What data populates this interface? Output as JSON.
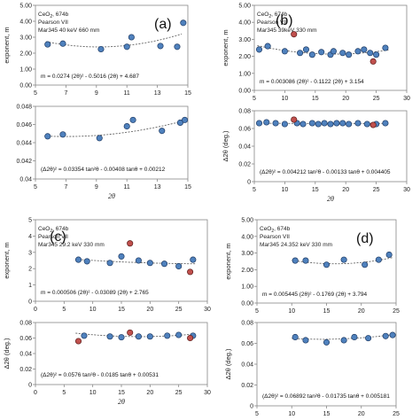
{
  "chart_data": [
    {
      "type": "scatter",
      "title": "",
      "panel_label": "(a)",
      "annotation": [
        "CeO",
        "2",
        ", 674b",
        "Pearson VII",
        "Mar345 40 keV 660 mm"
      ],
      "equation": "m = 0.0274 (2θ)² - 0.5016 (2θ) + 4.687",
      "ylabel": "exponent, m",
      "xlabel": "",
      "xlim": [
        5,
        15
      ],
      "xticks": [
        5,
        7,
        9,
        11,
        13,
        15
      ],
      "ylim": [
        0,
        5
      ],
      "yticks": [
        0,
        1,
        2,
        3,
        4,
        5
      ],
      "yticklabels": [
        "0.00",
        "1.00",
        "2.00",
        "3.00",
        "4.00",
        "5.00"
      ],
      "fit": {
        "kind": "poly2",
        "coef": [
          0.0274,
          -0.5016,
          4.687
        ],
        "range": [
          5.7,
          14.6
        ]
      },
      "points": [
        {
          "x": 5.8,
          "y": 2.55
        },
        {
          "x": 6.8,
          "y": 2.6
        },
        {
          "x": 9.3,
          "y": 2.25
        },
        {
          "x": 11.0,
          "y": 2.4
        },
        {
          "x": 11.3,
          "y": 3.0
        },
        {
          "x": 13.2,
          "y": 2.45
        },
        {
          "x": 14.3,
          "y": 2.4
        },
        {
          "x": 14.7,
          "y": 3.9
        }
      ]
    },
    {
      "type": "scatter",
      "title": "",
      "equation": "(Δ2θ)² = 0.03354 tan²θ - 0.00408 tanθ + 0.00212",
      "ylabel": "",
      "xlabel": "2θ",
      "xlim": [
        5,
        15
      ],
      "xticks": [
        5,
        7,
        9,
        11,
        13,
        15
      ],
      "ylim": [
        0.04,
        0.048
      ],
      "yticks": [
        0.04,
        0.042,
        0.044,
        0.046,
        0.048
      ],
      "yticklabels": [
        "0.04",
        "0.042",
        "0.044",
        "0.046",
        "0.048"
      ],
      "fit": {
        "kind": "tanpoly",
        "coef": [
          0.03354,
          -0.00408,
          0.00212
        ],
        "range": [
          5.6,
          14.8
        ]
      },
      "points": [
        {
          "x": 5.8,
          "y": 0.0447
        },
        {
          "x": 6.8,
          "y": 0.0449
        },
        {
          "x": 9.2,
          "y": 0.0445
        },
        {
          "x": 11.0,
          "y": 0.0458
        },
        {
          "x": 11.4,
          "y": 0.0465
        },
        {
          "x": 13.3,
          "y": 0.0453
        },
        {
          "x": 14.5,
          "y": 0.0462
        },
        {
          "x": 14.8,
          "y": 0.0465
        }
      ]
    },
    {
      "type": "scatter",
      "title": "",
      "panel_label": "(b)",
      "annotation": [
        "CeO",
        "2",
        ", 674b",
        "Pearson VII",
        "Mar345 39keV  330 mm"
      ],
      "equation": "m = 0.003086 (2θ)² - 0.1122 (2θ) + 3.154",
      "ylabel": "exponent, m",
      "xlabel": "",
      "xlim": [
        5,
        30
      ],
      "xticks": [
        5,
        10,
        15,
        20,
        25,
        30
      ],
      "ylim": [
        0,
        5
      ],
      "yticks": [
        0,
        1,
        2,
        3,
        4,
        5
      ],
      "yticklabels": [
        "0.00",
        "1.00",
        "2.00",
        "3.00",
        "4.00",
        "5.00"
      ],
      "fit": {
        "kind": "poly2",
        "coef": [
          0.003086,
          -0.1122,
          3.154
        ],
        "range": [
          5.5,
          27
        ]
      },
      "points": [
        {
          "x": 5.8,
          "y": 2.4
        },
        {
          "x": 7.2,
          "y": 2.6
        },
        {
          "x": 10.0,
          "y": 2.3
        },
        {
          "x": 12.5,
          "y": 2.2
        },
        {
          "x": 13.5,
          "y": 2.4
        },
        {
          "x": 14.5,
          "y": 2.1
        },
        {
          "x": 16.0,
          "y": 2.25
        },
        {
          "x": 17.5,
          "y": 2.1
        },
        {
          "x": 18.0,
          "y": 2.3
        },
        {
          "x": 19.5,
          "y": 2.2
        },
        {
          "x": 20.5,
          "y": 2.1
        },
        {
          "x": 22.0,
          "y": 2.3
        },
        {
          "x": 23.0,
          "y": 2.4
        },
        {
          "x": 24.0,
          "y": 2.2
        },
        {
          "x": 25.0,
          "y": 2.1
        },
        {
          "x": 26.5,
          "y": 2.5
        }
      ],
      "outliers": [
        {
          "x": 11.5,
          "y": 3.3
        },
        {
          "x": 24.5,
          "y": 1.7
        }
      ]
    },
    {
      "type": "scatter",
      "title": "",
      "equation": "(Δ2θ)² = 0.004212 tan²θ - 0.00133 tanθ + 0.004405",
      "ylabel": "Δ2θ (deg.)",
      "xlabel": "2θ",
      "xlim": [
        5,
        30
      ],
      "xticks": [
        5,
        10,
        15,
        20,
        25,
        30
      ],
      "ylim": [
        0,
        0.08
      ],
      "yticks": [
        0,
        0.02,
        0.04,
        0.06,
        0.08
      ],
      "yticklabels": [
        "0",
        "0.02",
        "0.04",
        "0.06",
        "0.08"
      ],
      "fit": {
        "kind": "tanpoly",
        "coef": [
          0.004212,
          -0.00133,
          0.004405
        ],
        "range": [
          5.5,
          27
        ]
      },
      "points": [
        {
          "x": 5.8,
          "y": 0.066
        },
        {
          "x": 7.0,
          "y": 0.067
        },
        {
          "x": 8.5,
          "y": 0.066
        },
        {
          "x": 10.0,
          "y": 0.065
        },
        {
          "x": 12.0,
          "y": 0.066
        },
        {
          "x": 13.0,
          "y": 0.065
        },
        {
          "x": 14.5,
          "y": 0.066
        },
        {
          "x": 15.5,
          "y": 0.065
        },
        {
          "x": 16.5,
          "y": 0.066
        },
        {
          "x": 17.5,
          "y": 0.065
        },
        {
          "x": 18.5,
          "y": 0.066
        },
        {
          "x": 19.5,
          "y": 0.066
        },
        {
          "x": 20.5,
          "y": 0.065
        },
        {
          "x": 22.0,
          "y": 0.066
        },
        {
          "x": 23.5,
          "y": 0.065
        },
        {
          "x": 25.0,
          "y": 0.065
        },
        {
          "x": 26.5,
          "y": 0.066
        }
      ],
      "outliers": [
        {
          "x": 11.5,
          "y": 0.07
        },
        {
          "x": 24.5,
          "y": 0.064
        }
      ]
    },
    {
      "type": "scatter",
      "title": "",
      "panel_label": "(c)",
      "annotation": [
        "CeO",
        "2",
        ", 674b",
        "Pearson VII",
        "Mar345 29.2 keV 330 mm"
      ],
      "equation": "m = 0.000506 (2θ)² - 0.03089 (2θ) + 2.765",
      "ylabel": "exponent, m",
      "xlabel": "",
      "xlim": [
        0,
        30
      ],
      "xticks": [
        0,
        5,
        10,
        15,
        20,
        25,
        30
      ],
      "ylim": [
        0,
        5
      ],
      "yticks": [
        0,
        1,
        2,
        3,
        4,
        5
      ],
      "yticklabels": [
        "0",
        "1",
        "2",
        "3",
        "4",
        "5"
      ],
      "fit": {
        "kind": "poly2",
        "coef": [
          0.000506,
          -0.03089,
          2.765
        ],
        "range": [
          7,
          28
        ]
      },
      "points": [
        {
          "x": 7.5,
          "y": 2.55
        },
        {
          "x": 9.0,
          "y": 2.45
        },
        {
          "x": 13.0,
          "y": 2.35
        },
        {
          "x": 15.0,
          "y": 2.75
        },
        {
          "x": 18.0,
          "y": 2.5
        },
        {
          "x": 20.0,
          "y": 2.35
        },
        {
          "x": 22.5,
          "y": 2.3
        },
        {
          "x": 25.0,
          "y": 2.15
        },
        {
          "x": 27.5,
          "y": 2.55
        }
      ],
      "outliers": [
        {
          "x": 16.5,
          "y": 3.55
        },
        {
          "x": 27.0,
          "y": 1.8
        }
      ]
    },
    {
      "type": "scatter",
      "title": "",
      "equation": "(Δ2θ)² = 0.0576 tan²θ - 0.0185 tanθ + 0.00531",
      "ylabel": "Δ2θ (deg.)",
      "xlabel": "2θ",
      "xlim": [
        0,
        30
      ],
      "xticks": [
        0,
        5,
        10,
        15,
        20,
        25,
        30
      ],
      "ylim": [
        0,
        0.08
      ],
      "yticks": [
        0,
        0.02,
        0.04,
        0.06,
        0.08
      ],
      "yticklabels": [
        "0",
        "0.02",
        "0.04",
        "0.06",
        "0.08"
      ],
      "fit": {
        "kind": "tanpoly",
        "coef": [
          0.0576,
          -0.0185,
          0.00531
        ],
        "range": [
          7,
          28
        ]
      },
      "points": [
        {
          "x": 8.5,
          "y": 0.063
        },
        {
          "x": 13.0,
          "y": 0.062
        },
        {
          "x": 15.0,
          "y": 0.061
        },
        {
          "x": 18.0,
          "y": 0.062
        },
        {
          "x": 20.0,
          "y": 0.062
        },
        {
          "x": 23.0,
          "y": 0.063
        },
        {
          "x": 25.0,
          "y": 0.064
        },
        {
          "x": 27.5,
          "y": 0.063
        }
      ],
      "outliers": [
        {
          "x": 7.5,
          "y": 0.056
        },
        {
          "x": 16.5,
          "y": 0.067
        },
        {
          "x": 27.0,
          "y": 0.06
        }
      ]
    },
    {
      "type": "scatter",
      "title": "",
      "panel_label": "(d)",
      "annotation": [
        "CeO",
        "2",
        ", 674b",
        "Pearson VII",
        "Mar345 24.352 keV 330 mm"
      ],
      "equation": "m = 0.005445 (2θ)² - 0.1769 (2θ) + 3.794",
      "ylabel": "exponent, m",
      "xlabel": "",
      "xlim": [
        5,
        25
      ],
      "xticks": [
        5,
        10,
        15,
        20,
        25
      ],
      "ylim": [
        0,
        5
      ],
      "yticks": [
        0,
        1,
        2,
        3,
        4,
        5
      ],
      "yticklabels": [
        "0.00",
        "1.00",
        "2.00",
        "3.00",
        "4.00",
        "5.00"
      ],
      "fit": {
        "kind": "poly2",
        "coef": [
          0.005445,
          -0.1769,
          3.794
        ],
        "range": [
          10,
          24.5
        ]
      },
      "points": [
        {
          "x": 10.5,
          "y": 2.55
        },
        {
          "x": 12.0,
          "y": 2.55
        },
        {
          "x": 15.0,
          "y": 2.3
        },
        {
          "x": 17.5,
          "y": 2.6
        },
        {
          "x": 20.5,
          "y": 2.3
        },
        {
          "x": 22.5,
          "y": 2.6
        },
        {
          "x": 24.0,
          "y": 2.9
        }
      ]
    },
    {
      "type": "scatter",
      "title": "",
      "equation": "(Δ2θ)² = 0.06892 tan²θ - 0.01735 tanθ + 0.005181",
      "ylabel": "Δ2θ (deg.)",
      "xlabel": "2θ",
      "xlim": [
        5,
        25
      ],
      "xticks": [
        5,
        10,
        15,
        20,
        25
      ],
      "ylim": [
        0,
        0.08
      ],
      "yticks": [
        0,
        0.02,
        0.04,
        0.06,
        0.08
      ],
      "yticklabels": [
        "0",
        "0.02",
        "0.04",
        "0.06",
        "0.08"
      ],
      "fit": {
        "kind": "tanpoly",
        "coef": [
          0.06892,
          -0.01735,
          0.005181
        ],
        "range": [
          10,
          24.5
        ]
      },
      "points": [
        {
          "x": 10.5,
          "y": 0.066
        },
        {
          "x": 12.0,
          "y": 0.063
        },
        {
          "x": 15.0,
          "y": 0.061
        },
        {
          "x": 17.5,
          "y": 0.063
        },
        {
          "x": 19.0,
          "y": 0.066
        },
        {
          "x": 21.0,
          "y": 0.065
        },
        {
          "x": 23.5,
          "y": 0.067
        },
        {
          "x": 24.5,
          "y": 0.068
        }
      ]
    }
  ],
  "style": {
    "point_fill": "#4f81bd",
    "point_stroke": "#1f3b64",
    "outlier_fill": "#c0504d",
    "outlier_stroke": "#5a1a18",
    "fit_color": "#666666",
    "axis_color": "#888888"
  }
}
